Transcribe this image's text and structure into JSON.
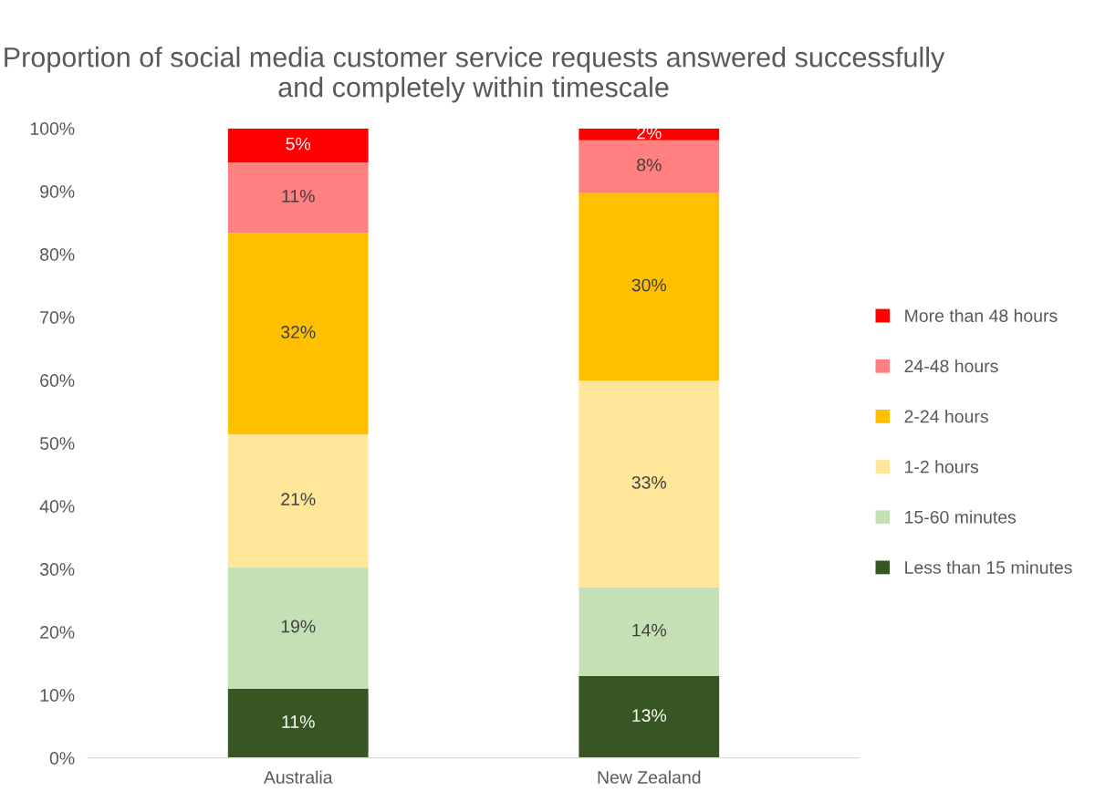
{
  "chart_data": {
    "type": "bar",
    "stacked": true,
    "title": "Proportion of social media customer service requests answered successfully and completely within timescale",
    "categories": [
      "Australia",
      "New Zealand"
    ],
    "series": [
      {
        "name": "Less than 15 minutes",
        "color": "#375623",
        "values": [
          11,
          13
        ],
        "value_labels": [
          "11%",
          "13%"
        ]
      },
      {
        "name": "15-60 minutes",
        "color": "#c5e0b4",
        "values": [
          19.3,
          14.1
        ],
        "value_labels": [
          "19%",
          "14%"
        ]
      },
      {
        "name": "1-2 hours",
        "color": "#ffe699",
        "values": [
          21.1,
          32.8
        ],
        "value_labels": [
          "21%",
          "33%"
        ]
      },
      {
        "name": "2-24 hours",
        "color": "#ffc000",
        "values": [
          32,
          29.9
        ],
        "value_labels": [
          "32%",
          "30%"
        ]
      },
      {
        "name": "24-48 hours",
        "color": "#ff8080",
        "values": [
          11.2,
          8.3
        ],
        "value_labels": [
          "11%",
          "8%"
        ]
      },
      {
        "name": "More than 48 hours",
        "color": "#ff0000",
        "values": [
          5.4,
          1.9
        ],
        "value_labels": [
          "5%",
          "2%"
        ]
      }
    ],
    "ylim": [
      0,
      100
    ],
    "yticks": [
      {
        "value": 0,
        "label": "0%"
      },
      {
        "value": 10,
        "label": "10%"
      },
      {
        "value": 20,
        "label": "20%"
      },
      {
        "value": 30,
        "label": "30%"
      },
      {
        "value": 40,
        "label": "40%"
      },
      {
        "value": 50,
        "label": "50%"
      },
      {
        "value": 60,
        "label": "60%"
      },
      {
        "value": 70,
        "label": "70%"
      },
      {
        "value": 80,
        "label": "80%"
      },
      {
        "value": 90,
        "label": "90%"
      },
      {
        "value": 100,
        "label": "100%"
      }
    ],
    "grid": false,
    "legend": "right"
  }
}
